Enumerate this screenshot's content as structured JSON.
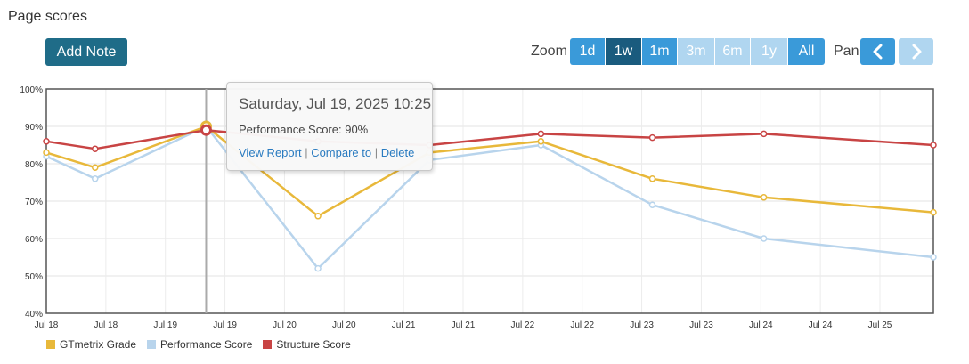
{
  "header": {
    "title": "Page scores",
    "add_note_label": "Add Note"
  },
  "zoom": {
    "label": "Zoom",
    "buttons": [
      {
        "label": "1d",
        "state": "enabled"
      },
      {
        "label": "1w",
        "state": "active"
      },
      {
        "label": "1m",
        "state": "enabled"
      },
      {
        "label": "3m",
        "state": "disabled"
      },
      {
        "label": "6m",
        "state": "disabled"
      },
      {
        "label": "1y",
        "state": "disabled"
      },
      {
        "label": "All",
        "state": "enabled"
      }
    ]
  },
  "pan": {
    "label": "Pan",
    "prev_icon": "chevron-left-icon",
    "next_icon": "chevron-right-icon"
  },
  "tooltip": {
    "title": "Saturday, Jul 19, 2025 10:25",
    "performance": "Performance Score: 90%",
    "links": {
      "view": "View Report",
      "compare": "Compare to",
      "delete": "Delete",
      "separator": " | "
    }
  },
  "colors": {
    "accent": "#1f6c88",
    "zoom_active": "#1a5b7e",
    "zoom_enabled": "#3a9ad9",
    "zoom_disabled": "#b0d6f0"
  },
  "chart_data": {
    "type": "line",
    "title": "Page scores",
    "x_tick_labels": [
      "Jul 18",
      "Jul 18",
      "Jul 19",
      "Jul 19",
      "Jul 20",
      "Jul 20",
      "Jul 21",
      "Jul 21",
      "Jul 22",
      "Jul 22",
      "Jul 23",
      "Jul 23",
      "Jul 24",
      "Jul 24",
      "Jul 25"
    ],
    "y_tick_labels": [
      "40%",
      "50%",
      "60%",
      "70%",
      "80%",
      "90%",
      "100%"
    ],
    "ylim": [
      40,
      100
    ],
    "xlim": [
      "2025-07-18 00:00",
      "2025-07-25 23:00"
    ],
    "grid": true,
    "legend_position": "bottom-left",
    "hover_x": "2025-07-19 10:25",
    "series": [
      {
        "name": "GTmetrix Grade",
        "color": "#e8b83a",
        "points": [
          [
            "2025-07-18 00:00",
            83
          ],
          [
            "2025-07-18 10:30",
            79
          ],
          [
            "2025-07-19 10:25",
            90
          ],
          [
            "2025-07-20 10:30",
            66
          ],
          [
            "2025-07-21 10:30",
            83
          ],
          [
            "2025-07-22 10:30",
            86
          ],
          [
            "2025-07-23 10:30",
            76
          ],
          [
            "2025-07-24 10:30",
            71
          ],
          [
            "2025-07-25 23:00",
            67
          ]
        ]
      },
      {
        "name": "Performance Score",
        "color": "#b8d4ec",
        "points": [
          [
            "2025-07-18 00:00",
            82
          ],
          [
            "2025-07-18 10:30",
            76
          ],
          [
            "2025-07-19 10:25",
            90
          ],
          [
            "2025-07-20 10:30",
            52
          ],
          [
            "2025-07-21 10:30",
            81
          ],
          [
            "2025-07-22 10:30",
            85
          ],
          [
            "2025-07-23 10:30",
            69
          ],
          [
            "2025-07-24 10:30",
            60
          ],
          [
            "2025-07-25 23:00",
            55
          ]
        ]
      },
      {
        "name": "Structure Score",
        "color": "#c84444",
        "points": [
          [
            "2025-07-18 00:00",
            86
          ],
          [
            "2025-07-18 10:30",
            84
          ],
          [
            "2025-07-19 10:25",
            89
          ],
          [
            "2025-07-20 10:30",
            86
          ],
          [
            "2025-07-21 10:30",
            85
          ],
          [
            "2025-07-22 10:30",
            88
          ],
          [
            "2025-07-23 10:30",
            87
          ],
          [
            "2025-07-24 10:30",
            88
          ],
          [
            "2025-07-25 23:00",
            85
          ]
        ]
      }
    ]
  }
}
